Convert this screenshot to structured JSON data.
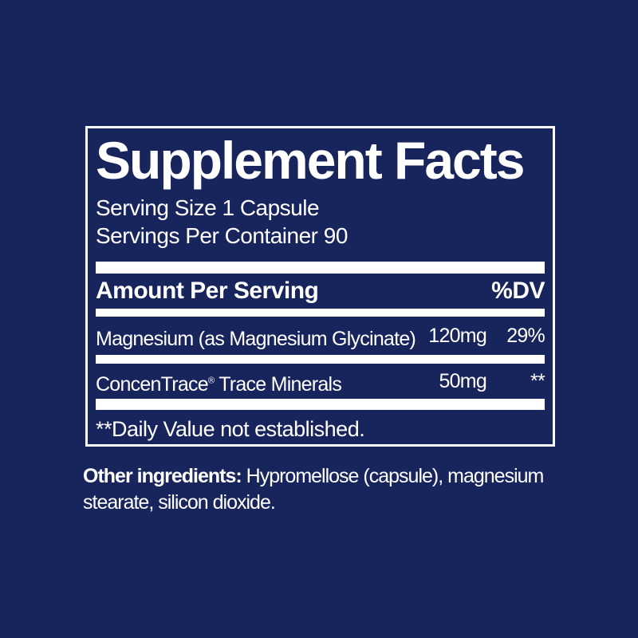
{
  "colors": {
    "background": "#18255C",
    "text": "#FFFFFF",
    "panel_border": "#FFFFFF",
    "divider_bar": "#FFFFFF"
  },
  "panel": {
    "title": "Supplement Facts",
    "serving_size": "Serving Size 1 Capsule",
    "servings_per_container": "Servings Per Container 90",
    "header": {
      "amount_label": "Amount Per Serving",
      "dv_label": "%DV"
    },
    "rows": [
      {
        "name": "Magnesium (as Magnesium Glycinate)",
        "reg_mark": "",
        "name_rest": "",
        "amount": "120mg",
        "dv": "29%"
      },
      {
        "name": "ConcenTrace",
        "reg_mark": "®",
        "name_rest": " Trace Minerals",
        "amount": "50mg",
        "dv": "**"
      }
    ],
    "footnote": "**Daily Value not established."
  },
  "other_ingredients": {
    "label": "Other ingredients:",
    "text": " Hypromellose (capsule), magnesium stearate, silicon dioxide."
  }
}
